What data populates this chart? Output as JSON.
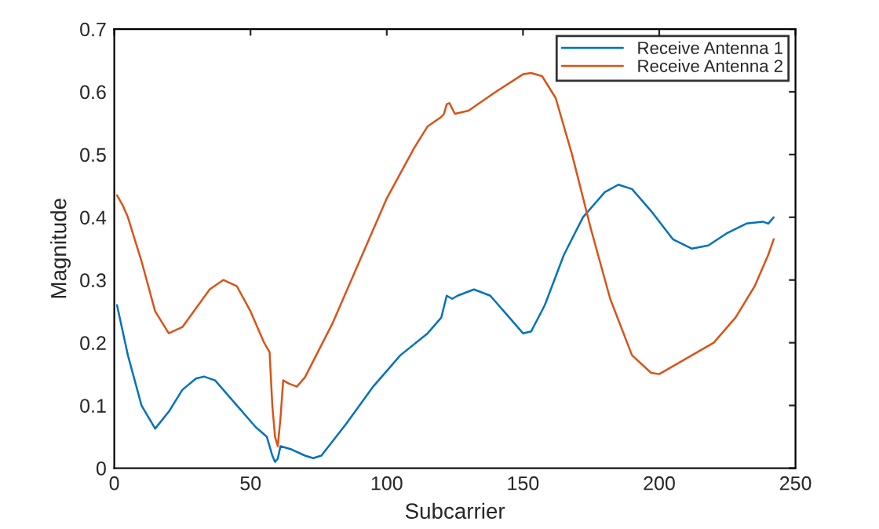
{
  "chart_data": {
    "type": "line",
    "xlabel": "Subcarrier",
    "ylabel": "Magnitude",
    "xlim": [
      0,
      250
    ],
    "xticks": [
      0,
      50,
      100,
      150,
      200,
      250
    ],
    "ylim": [
      0,
      0.7
    ],
    "yticks": [
      0,
      0.1,
      0.2,
      0.3,
      0.4,
      0.5,
      0.6,
      0.7
    ],
    "grid": false,
    "legend": "top right",
    "marker": "none",
    "line_style": "solid",
    "series": [
      {
        "name": "Receive Antenna 1",
        "color": "#0072bd",
        "x": [
          1,
          5,
          10,
          15,
          20,
          25,
          30,
          33,
          37,
          45,
          52,
          56,
          58,
          59,
          60,
          61,
          65,
          70,
          73,
          76,
          85,
          95,
          105,
          115,
          120,
          122,
          124,
          126,
          132,
          138,
          145,
          150,
          153,
          158,
          165,
          172,
          180,
          185,
          190,
          197,
          205,
          212,
          218,
          225,
          232,
          238,
          240,
          242
        ],
        "values": [
          0.26,
          0.18,
          0.1,
          0.063,
          0.09,
          0.125,
          0.143,
          0.146,
          0.14,
          0.1,
          0.065,
          0.05,
          0.02,
          0.01,
          0.015,
          0.035,
          0.03,
          0.02,
          0.016,
          0.02,
          0.07,
          0.13,
          0.18,
          0.215,
          0.24,
          0.275,
          0.27,
          0.275,
          0.285,
          0.275,
          0.24,
          0.215,
          0.218,
          0.26,
          0.34,
          0.4,
          0.44,
          0.452,
          0.445,
          0.41,
          0.365,
          0.35,
          0.355,
          0.375,
          0.39,
          0.393,
          0.39,
          0.4
        ]
      },
      {
        "name": "Receive Antenna 2",
        "color": "#d95319",
        "x": [
          1,
          3,
          5,
          10,
          15,
          20,
          25,
          30,
          35,
          40,
          45,
          50,
          55,
          57,
          58,
          59,
          60,
          61,
          62,
          64,
          67,
          70,
          80,
          90,
          100,
          110,
          115,
          120,
          121,
          122,
          123,
          125,
          130,
          140,
          150,
          153,
          157,
          162,
          168,
          175,
          182,
          190,
          197,
          200,
          210,
          220,
          228,
          235,
          240,
          242
        ],
        "values": [
          0.435,
          0.42,
          0.4,
          0.33,
          0.25,
          0.215,
          0.225,
          0.255,
          0.285,
          0.3,
          0.29,
          0.25,
          0.2,
          0.185,
          0.1,
          0.05,
          0.035,
          0.08,
          0.14,
          0.135,
          0.13,
          0.145,
          0.23,
          0.33,
          0.43,
          0.51,
          0.545,
          0.56,
          0.565,
          0.58,
          0.582,
          0.565,
          0.57,
          0.6,
          0.628,
          0.63,
          0.625,
          0.59,
          0.5,
          0.38,
          0.27,
          0.18,
          0.152,
          0.15,
          0.175,
          0.2,
          0.24,
          0.29,
          0.34,
          0.365
        ]
      }
    ]
  }
}
